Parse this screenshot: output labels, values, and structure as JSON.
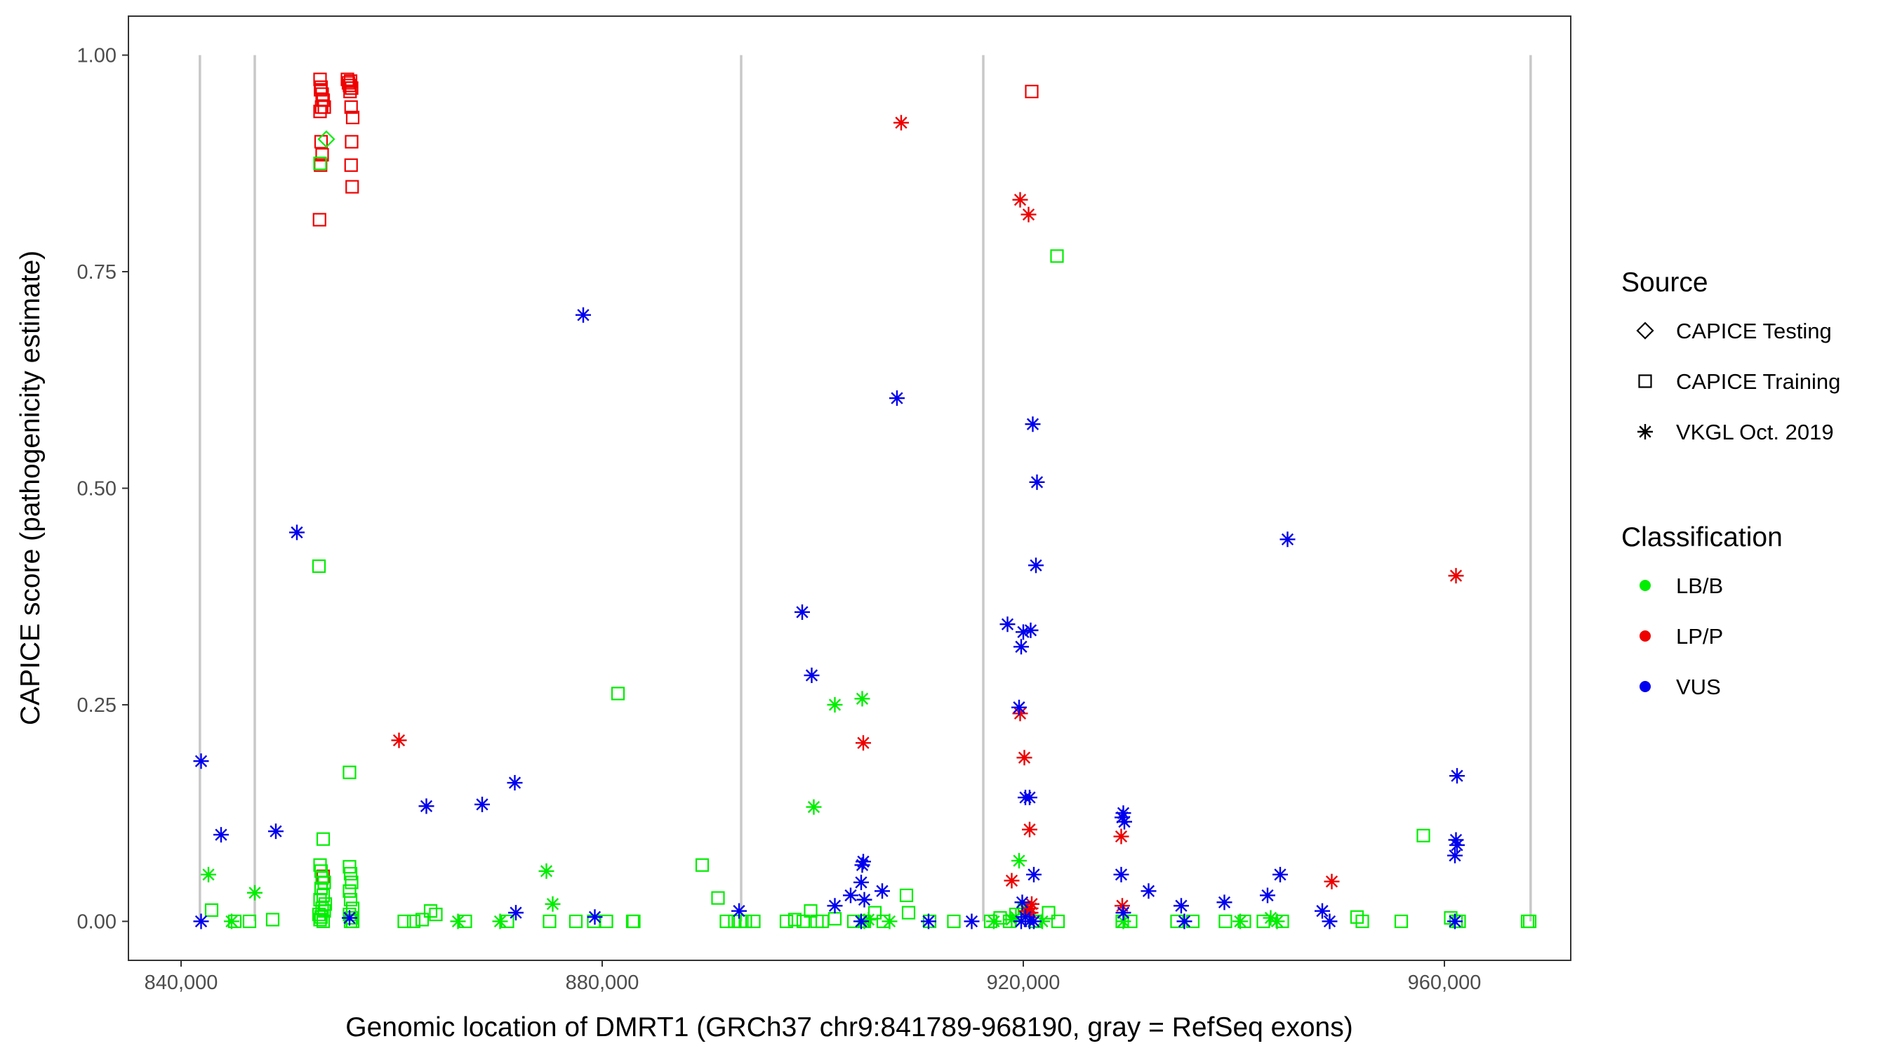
{
  "chart_data": {
    "type": "scatter",
    "xlabel": "Genomic location of DMRT1 (GRCh37 chr9:841789-968190, gray = RefSeq exons)",
    "ylabel": "CAPICE score (pathogenicity estimate)",
    "xlim": [
      835000,
      972000
    ],
    "ylim": [
      -0.045,
      1.045
    ],
    "x_ticks": [
      840000,
      880000,
      920000,
      960000
    ],
    "x_tick_labels": [
      "840,000",
      "880,000",
      "920,000",
      "960,000"
    ],
    "y_ticks": [
      0,
      0.25,
      0.5,
      0.75,
      1.0
    ],
    "y_tick_labels": [
      "0.00",
      "0.25",
      "0.50",
      "0.75",
      "1.00"
    ],
    "exons": [
      841789,
      847000,
      893200,
      916200,
      968190
    ],
    "colors": {
      "LB/B": "#00ee00",
      "LP/P": "#ee0000",
      "VUS": "#0000ee",
      "exon": "#c8c8c8",
      "frame": "#333333"
    },
    "legend": {
      "source_title": "Source",
      "source_items": [
        {
          "label": "CAPICE Testing",
          "shape": "diamond"
        },
        {
          "label": "CAPICE Training",
          "shape": "square"
        },
        {
          "label": "VKGL Oct. 2019",
          "shape": "asterisk"
        }
      ],
      "class_title": "Classification",
      "class_items": [
        {
          "label": "LB/B",
          "color": "#00ee00"
        },
        {
          "label": "LP/P",
          "color": "#ee0000"
        },
        {
          "label": "VUS",
          "color": "#0000ee"
        }
      ]
    },
    "series": [
      {
        "name": "CAPICE Training / LP/P",
        "source": "CAPICE Training",
        "classification": "LP/P",
        "x": [
          853200,
          853300,
          853400,
          853500,
          853600,
          853200,
          853300,
          853400,
          853250,
          853350,
          853150,
          853250,
          855800,
          855900,
          856000,
          856100,
          856200,
          856050,
          856150,
          856300,
          856200,
          856150,
          856250,
          920800,
          853500
        ],
        "y": [
          0.972,
          0.963,
          0.955,
          0.948,
          0.94,
          0.935,
          0.9,
          0.885,
          0.873,
          0.94,
          0.81,
          0.96,
          0.972,
          0.968,
          0.965,
          0.97,
          0.962,
          0.958,
          0.94,
          0.928,
          0.9,
          0.873,
          0.848,
          0.958,
          0.052
        ]
      },
      {
        "name": "CAPICE Testing / LB/B",
        "source": "CAPICE Testing",
        "classification": "LB/B",
        "x": [
          853800
        ],
        "y": [
          0.903
        ]
      },
      {
        "name": "CAPICE Training / LB/B",
        "source": "CAPICE Training",
        "classification": "LB/B",
        "x": [
          853200,
          853100,
          856000,
          853500,
          853200,
          853300,
          853400,
          853600,
          853300,
          853500,
          853200,
          853700,
          853400,
          853600,
          853100,
          853300,
          853200,
          853500,
          856000,
          856100,
          856200,
          856000,
          856100,
          856300,
          856000,
          856200,
          856100,
          856300,
          842900,
          845100,
          846500,
          848700,
          861200,
          862100,
          862900,
          863700,
          864200,
          867000,
          871000,
          875000,
          877500,
          879200,
          880400,
          881500,
          882900,
          883000,
          889500,
          891000,
          891800,
          892600,
          893100,
          893600,
          894400,
          897500,
          898300,
          899100,
          899800,
          900400,
          900900,
          902100,
          903900,
          904900,
          905900,
          906700,
          908900,
          909100,
          911100,
          913400,
          916900,
          917800,
          918700,
          919300,
          920100,
          921100,
          922400,
          923200,
          923300,
          929400,
          930200,
          934600,
          936100,
          939200,
          941000,
          942800,
          944600,
          951700,
          952200,
          955900,
          958000,
          960600,
          961100,
          961400,
          967900,
          968100
        ],
        "y": [
          0.875,
          0.41,
          0.172,
          0.095,
          0.065,
          0.058,
          0.05,
          0.045,
          0.038,
          0.03,
          0.025,
          0.02,
          0.015,
          0.012,
          0.008,
          0.005,
          0.002,
          0.0,
          0.063,
          0.055,
          0.045,
          0.035,
          0.025,
          0.015,
          0.008,
          0.004,
          0.0,
          0.0,
          0.013,
          0.0,
          0.0,
          0.002,
          0.0,
          0.0,
          0.002,
          0.012,
          0.008,
          0.0,
          0.0,
          0.0,
          0.0,
          0.0,
          0.0,
          0.263,
          0.0,
          0.0,
          0.065,
          0.027,
          0.0,
          0.0,
          0.0,
          0.0,
          0.0,
          0.0,
          0.002,
          0.0,
          0.012,
          0.0,
          0.0,
          0.003,
          0.0,
          0.0,
          0.01,
          0.0,
          0.03,
          0.01,
          0.0,
          0.0,
          0.0,
          0.004,
          0.0,
          0.008,
          0.015,
          0.0,
          0.01,
          0.768,
          0.0,
          0.0,
          0.0,
          0.0,
          0.0,
          0.0,
          0.0,
          0.0,
          0.0,
          0.005,
          0.0,
          0.0,
          0.099,
          0.004,
          0.0,
          0.0,
          0.0,
          0.0
        ]
      },
      {
        "name": "VKGL Oct. 2019 / LB/B",
        "source": "VKGL Oct. 2019",
        "classification": "LB/B",
        "x": [
          842600,
          844800,
          847000,
          866300,
          870300,
          874700,
          875300,
          900100,
          902100,
          904700,
          904900,
          905300,
          907300,
          917200,
          918900,
          919300,
          919600,
          920100,
          921800,
          929500,
          940600,
          943500,
          944100
        ],
        "y": [
          0.054,
          0.0,
          0.033,
          0.0,
          0.0,
          0.058,
          0.02,
          0.132,
          0.25,
          0.257,
          0.0,
          0.002,
          0.0,
          0.0,
          0.002,
          0.005,
          0.07,
          0.015,
          0.0,
          0.0,
          0.0,
          0.004,
          0.0
        ]
      },
      {
        "name": "VKGL Oct. 2019 / LP/P",
        "source": "VKGL Oct. 2019",
        "classification": "LP/P",
        "x": [
          908400,
          919700,
          920500,
          860700,
          904800,
          919700,
          920100,
          920600,
          920700,
          920800,
          920300,
          929300,
          929400,
          949300,
          961100,
          920700,
          918900
        ],
        "y": [
          0.922,
          0.833,
          0.816,
          0.209,
          0.206,
          0.24,
          0.189,
          0.106,
          0.015,
          0.02,
          0.012,
          0.098,
          0.018,
          0.046,
          0.399,
          0.01,
          0.047
        ]
      },
      {
        "name": "VKGL Oct. 2019 / VUS",
        "source": "VKGL Oct. 2019",
        "classification": "VUS",
        "x": [
          878200,
          908000,
          920900,
          921300,
          851000,
          945100,
          899000,
          918500,
          920000,
          920700,
          919600,
          921200,
          899900,
          919800,
          920200,
          920600,
          961200,
          841900,
          843800,
          849000,
          863300,
          868600,
          871700,
          929500,
          929400,
          929600,
          904800,
          904700,
          904600,
          906600,
          902100,
          903600,
          904900,
          929300,
          931900,
          944400,
          919900,
          921000,
          935000,
          939100,
          943200,
          948400,
          961100,
          961200,
          961000,
          893000,
          879300,
          871800,
          856000,
          841900,
          911000,
          915100,
          919800,
          920200,
          920600,
          921000,
          929500,
          935300,
          949100,
          961000,
          904600
        ],
        "y": [
          0.7,
          0.604,
          0.574,
          0.507,
          0.449,
          0.441,
          0.357,
          0.343,
          0.334,
          0.336,
          0.247,
          0.411,
          0.284,
          0.317,
          0.143,
          0.143,
          0.168,
          0.185,
          0.1,
          0.104,
          0.133,
          0.135,
          0.16,
          0.125,
          0.12,
          0.115,
          0.069,
          0.065,
          0.045,
          0.035,
          0.018,
          0.03,
          0.025,
          0.054,
          0.035,
          0.054,
          0.022,
          0.054,
          0.018,
          0.022,
          0.03,
          0.012,
          0.094,
          0.088,
          0.076,
          0.012,
          0.005,
          0.01,
          0.004,
          0.0,
          0.0,
          0.0,
          0.0,
          0.005,
          0.0,
          0.0,
          0.01,
          0.0,
          0.0,
          0.0,
          0.0
        ]
      }
    ]
  }
}
